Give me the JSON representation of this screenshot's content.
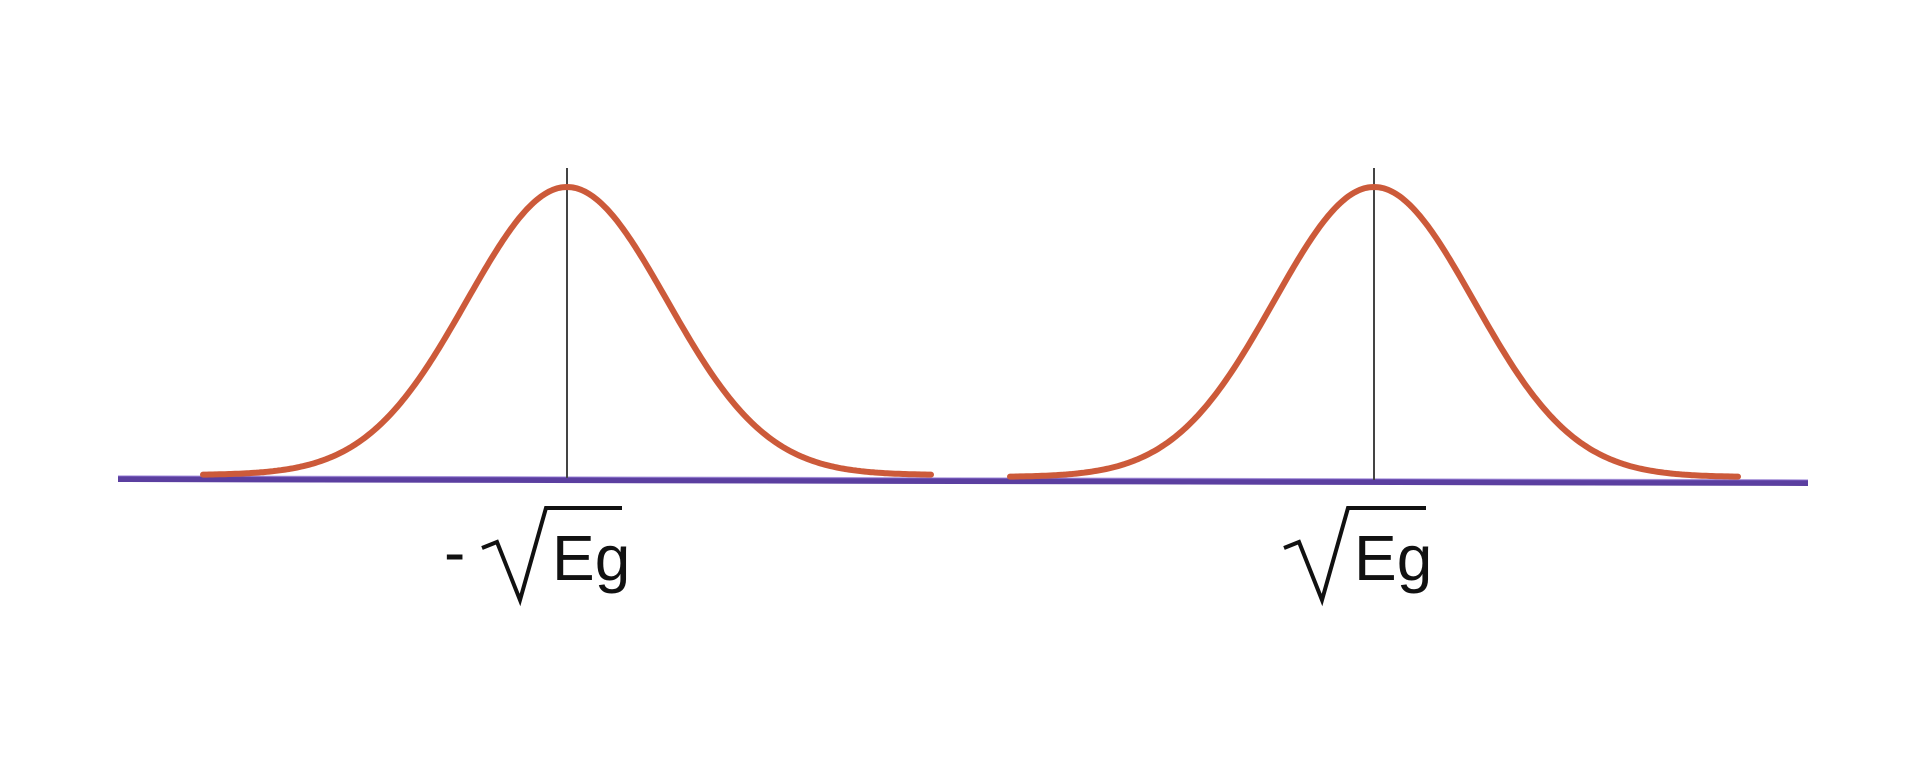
{
  "labels": {
    "left_minus": "-",
    "left_term": "Eg",
    "right_term": "Eg"
  },
  "colors": {
    "background": "#ffffff",
    "curve": "#cc5a3a",
    "axis": "#5b3fa0",
    "marker": "#444444",
    "text": "#111111"
  },
  "symbols": {
    "radical": "sqrt-radical-sign"
  }
}
